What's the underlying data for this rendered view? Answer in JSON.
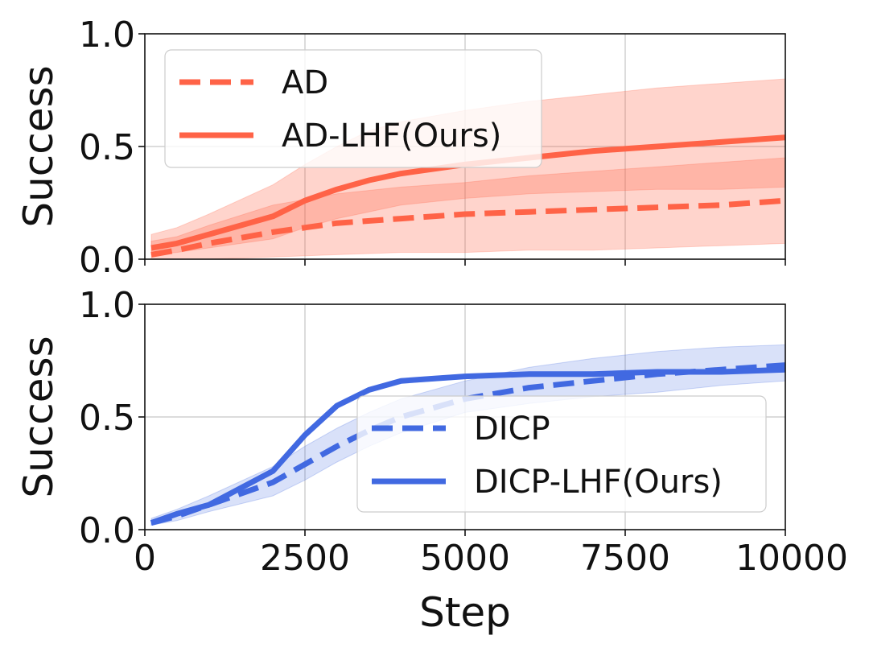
{
  "chart_data": [
    {
      "type": "line",
      "ylabel": "Success",
      "xlabel": "",
      "ylim": [
        0,
        1
      ],
      "xlim": [
        0,
        10000
      ],
      "yticks": [
        "0.0",
        "0.5",
        "1.0"
      ],
      "grid": true,
      "legend": "top-left",
      "series": [
        {
          "name": "AD",
          "style": "dashed",
          "color": "#FF6347",
          "x": [
            100,
            500,
            1000,
            2000,
            3000,
            4000,
            5000,
            6000,
            7000,
            8000,
            9000,
            10000
          ],
          "values": [
            0.02,
            0.04,
            0.07,
            0.12,
            0.16,
            0.18,
            0.2,
            0.21,
            0.22,
            0.23,
            0.24,
            0.26
          ],
          "band_lower": [
            0.0,
            0.0,
            0.0,
            0.01,
            0.02,
            0.03,
            0.03,
            0.04,
            0.04,
            0.05,
            0.06,
            0.07
          ],
          "band_upper": [
            0.08,
            0.1,
            0.15,
            0.24,
            0.29,
            0.32,
            0.34,
            0.37,
            0.39,
            0.41,
            0.43,
            0.45
          ]
        },
        {
          "name": "AD-LHF(Ours)",
          "style": "solid",
          "color": "#FF6347",
          "x": [
            100,
            500,
            1000,
            2000,
            2500,
            3000,
            3500,
            4000,
            5000,
            6000,
            7000,
            8000,
            9000,
            10000
          ],
          "values": [
            0.05,
            0.07,
            0.11,
            0.19,
            0.26,
            0.31,
            0.35,
            0.38,
            0.42,
            0.45,
            0.48,
            0.5,
            0.52,
            0.54
          ],
          "band_lower": [
            0.02,
            0.03,
            0.05,
            0.09,
            0.14,
            0.18,
            0.21,
            0.24,
            0.27,
            0.29,
            0.3,
            0.31,
            0.31,
            0.32
          ],
          "band_upper": [
            0.11,
            0.14,
            0.2,
            0.33,
            0.42,
            0.5,
            0.57,
            0.61,
            0.66,
            0.7,
            0.73,
            0.76,
            0.78,
            0.8
          ]
        }
      ]
    },
    {
      "type": "line",
      "ylabel": "Success",
      "xlabel": "Step",
      "ylim": [
        0,
        1
      ],
      "xlim": [
        0,
        10000
      ],
      "yticks": [
        "0.0",
        "0.5",
        "1.0"
      ],
      "xticks": [
        "0",
        "2500",
        "5000",
        "7500",
        "10000"
      ],
      "grid": true,
      "legend": "bottom-right",
      "series": [
        {
          "name": "DICP",
          "style": "dashed",
          "color": "#4169E1",
          "x": [
            100,
            500,
            1000,
            2000,
            2500,
            3000,
            3500,
            4000,
            5000,
            6000,
            7000,
            8000,
            9000,
            10000
          ],
          "values": [
            0.03,
            0.06,
            0.11,
            0.21,
            0.29,
            0.37,
            0.44,
            0.5,
            0.58,
            0.63,
            0.66,
            0.69,
            0.71,
            0.73
          ],
          "band_lower": [
            0.02,
            0.04,
            0.08,
            0.15,
            0.22,
            0.3,
            0.37,
            0.43,
            0.52,
            0.56,
            0.59,
            0.61,
            0.64,
            0.66
          ],
          "band_upper": [
            0.05,
            0.09,
            0.15,
            0.28,
            0.37,
            0.45,
            0.52,
            0.58,
            0.66,
            0.72,
            0.76,
            0.79,
            0.81,
            0.82
          ]
        },
        {
          "name": "DICP-LHF(Ours)",
          "style": "solid",
          "color": "#4169E1",
          "x": [
            100,
            500,
            1000,
            2000,
            2500,
            3000,
            3500,
            4000,
            4500,
            5000,
            6000,
            7000,
            8000,
            9000,
            10000
          ],
          "values": [
            0.03,
            0.07,
            0.11,
            0.26,
            0.42,
            0.55,
            0.62,
            0.66,
            0.67,
            0.68,
            0.69,
            0.69,
            0.7,
            0.7,
            0.71
          ],
          "band_lower": [
            0.02,
            0.06,
            0.1,
            0.25,
            0.41,
            0.54,
            0.61,
            0.65,
            0.66,
            0.67,
            0.68,
            0.68,
            0.69,
            0.69,
            0.7
          ],
          "band_upper": [
            0.04,
            0.08,
            0.12,
            0.27,
            0.43,
            0.56,
            0.63,
            0.67,
            0.68,
            0.69,
            0.7,
            0.7,
            0.71,
            0.71,
            0.72
          ]
        }
      ]
    }
  ]
}
